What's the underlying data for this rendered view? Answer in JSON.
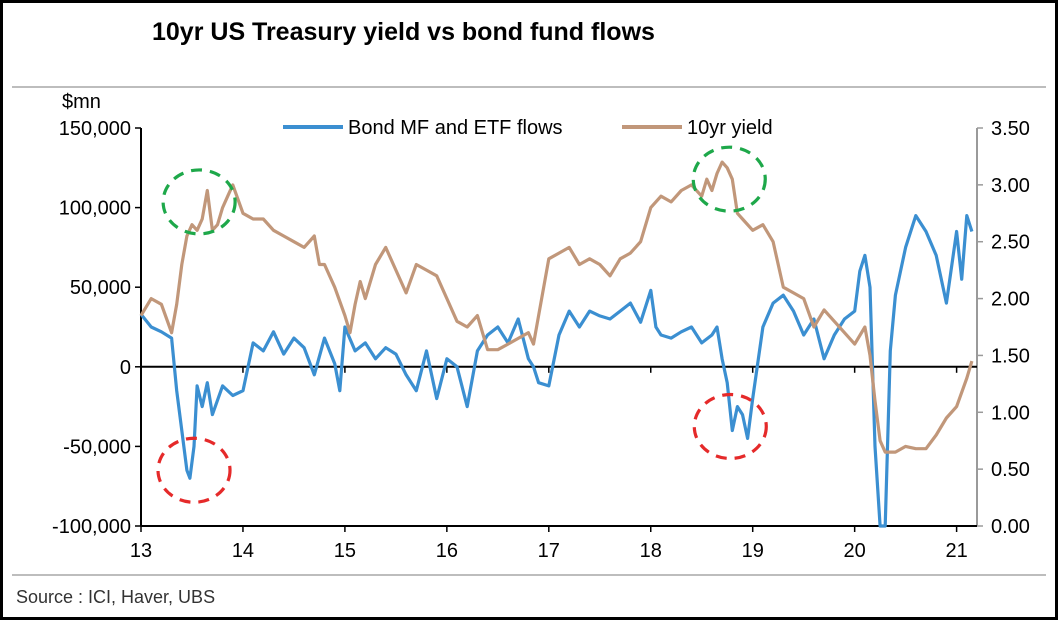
{
  "title": "10yr US Treasury yield vs bond fund flows",
  "source": "Source : ICI, Haver, UBS",
  "chart_data": {
    "type": "line",
    "title": "10yr US Treasury yield vs bond fund flows",
    "left_axis": {
      "unit_label": "$mn",
      "ylim": [
        -100000,
        150000
      ],
      "ticks": [
        150000,
        100000,
        50000,
        0,
        -50000,
        -100000
      ],
      "tick_labels": [
        "150,000",
        "100,000",
        "50,000",
        "0",
        "-50,000",
        "-100,000"
      ]
    },
    "right_axis": {
      "ylim": [
        0,
        3.5
      ],
      "ticks": [
        3.5,
        3.0,
        2.5,
        2.0,
        1.5,
        1.0,
        0.5,
        0.0
      ],
      "tick_labels": [
        "3.50",
        "3.00",
        "2.50",
        "2.00",
        "1.50",
        "1.00",
        "0.50",
        "0.00"
      ]
    },
    "x_axis": {
      "xlim": [
        13,
        21.2
      ],
      "ticks": [
        13,
        14,
        15,
        16,
        17,
        18,
        19,
        20,
        21
      ],
      "tick_labels": [
        "13",
        "14",
        "15",
        "16",
        "17",
        "18",
        "19",
        "20",
        "21"
      ]
    },
    "legend_position": "top-center",
    "series": [
      {
        "name": "Bond MF and ETF flows",
        "axis": "left",
        "color": "#3b8fd1",
        "x": [
          13.0,
          13.1,
          13.2,
          13.3,
          13.35,
          13.4,
          13.45,
          13.48,
          13.52,
          13.55,
          13.6,
          13.65,
          13.7,
          13.8,
          13.9,
          14.0,
          14.1,
          14.2,
          14.3,
          14.4,
          14.5,
          14.6,
          14.7,
          14.8,
          14.9,
          14.95,
          15.0,
          15.1,
          15.2,
          15.3,
          15.4,
          15.5,
          15.6,
          15.7,
          15.8,
          15.9,
          16.0,
          16.1,
          16.2,
          16.3,
          16.4,
          16.5,
          16.6,
          16.7,
          16.8,
          16.85,
          16.9,
          17.0,
          17.1,
          17.2,
          17.3,
          17.4,
          17.5,
          17.6,
          17.7,
          17.8,
          17.9,
          18.0,
          18.05,
          18.1,
          18.2,
          18.3,
          18.4,
          18.5,
          18.6,
          18.65,
          18.7,
          18.75,
          18.8,
          18.85,
          18.9,
          18.95,
          19.0,
          19.1,
          19.2,
          19.3,
          19.4,
          19.5,
          19.6,
          19.7,
          19.8,
          19.9,
          20.0,
          20.05,
          20.1,
          20.15,
          20.2,
          20.25,
          20.3,
          20.35,
          20.4,
          20.5,
          20.6,
          20.7,
          20.8,
          20.9,
          21.0,
          21.05,
          21.1,
          21.15
        ],
        "values": [
          33000,
          25000,
          22000,
          18000,
          -15000,
          -40000,
          -65000,
          -70000,
          -50000,
          -12000,
          -25000,
          -10000,
          -30000,
          -12000,
          -18000,
          -15000,
          15000,
          10000,
          22000,
          8000,
          18000,
          12000,
          -5000,
          18000,
          2000,
          -15000,
          25000,
          10000,
          15000,
          5000,
          12000,
          8000,
          -5000,
          -15000,
          10000,
          -20000,
          5000,
          0,
          -25000,
          10000,
          20000,
          25000,
          15000,
          30000,
          5000,
          0,
          -10000,
          -12000,
          20000,
          35000,
          25000,
          35000,
          32000,
          30000,
          35000,
          40000,
          28000,
          48000,
          25000,
          20000,
          18000,
          22000,
          25000,
          15000,
          20000,
          25000,
          5000,
          -10000,
          -40000,
          -25000,
          -30000,
          -45000,
          -20000,
          25000,
          40000,
          45000,
          35000,
          20000,
          30000,
          5000,
          20000,
          30000,
          35000,
          60000,
          70000,
          50000,
          -50000,
          -100000,
          -100000,
          10000,
          45000,
          75000,
          95000,
          85000,
          70000,
          40000,
          85000,
          55000,
          95000,
          85000
        ]
      },
      {
        "name": "10yr yield",
        "axis": "right",
        "color": "#c1977a",
        "x": [
          13.0,
          13.1,
          13.2,
          13.3,
          13.35,
          13.4,
          13.45,
          13.5,
          13.55,
          13.6,
          13.65,
          13.7,
          13.75,
          13.8,
          13.85,
          13.9,
          14.0,
          14.1,
          14.2,
          14.3,
          14.4,
          14.5,
          14.6,
          14.7,
          14.75,
          14.8,
          14.9,
          15.0,
          15.05,
          15.1,
          15.15,
          15.2,
          15.3,
          15.4,
          15.5,
          15.6,
          15.7,
          15.8,
          15.9,
          16.0,
          16.1,
          16.2,
          16.3,
          16.4,
          16.5,
          16.6,
          16.7,
          16.8,
          16.85,
          16.9,
          17.0,
          17.1,
          17.2,
          17.3,
          17.4,
          17.5,
          17.6,
          17.7,
          17.8,
          17.9,
          18.0,
          18.1,
          18.2,
          18.3,
          18.4,
          18.5,
          18.55,
          18.6,
          18.65,
          18.7,
          18.75,
          18.8,
          18.85,
          18.9,
          19.0,
          19.1,
          19.2,
          19.3,
          19.4,
          19.5,
          19.6,
          19.7,
          19.8,
          19.9,
          20.0,
          20.1,
          20.15,
          20.2,
          20.25,
          20.3,
          20.4,
          20.5,
          20.6,
          20.7,
          20.8,
          20.9,
          21.0,
          21.1,
          21.15
        ],
        "values": [
          1.85,
          2.0,
          1.95,
          1.7,
          1.95,
          2.3,
          2.55,
          2.65,
          2.6,
          2.7,
          2.95,
          2.6,
          2.65,
          2.8,
          2.9,
          3.0,
          2.75,
          2.7,
          2.7,
          2.6,
          2.55,
          2.5,
          2.45,
          2.55,
          2.3,
          2.3,
          2.1,
          1.85,
          1.7,
          1.95,
          2.15,
          2.0,
          2.3,
          2.45,
          2.25,
          2.05,
          2.3,
          2.25,
          2.2,
          2.0,
          1.8,
          1.75,
          1.85,
          1.55,
          1.55,
          1.6,
          1.65,
          1.7,
          1.6,
          1.85,
          2.35,
          2.4,
          2.45,
          2.3,
          2.35,
          2.3,
          2.2,
          2.35,
          2.4,
          2.5,
          2.8,
          2.9,
          2.85,
          2.95,
          3.0,
          2.9,
          3.05,
          2.95,
          3.1,
          3.2,
          3.15,
          3.05,
          2.75,
          2.7,
          2.6,
          2.65,
          2.5,
          2.1,
          2.05,
          2.0,
          1.75,
          1.9,
          1.8,
          1.7,
          1.6,
          1.75,
          1.5,
          1.1,
          0.75,
          0.65,
          0.65,
          0.7,
          0.68,
          0.68,
          0.8,
          0.95,
          1.05,
          1.3,
          1.45
        ]
      }
    ],
    "annotations": [
      {
        "kind": "dashed-circle",
        "color": "#1ea84a",
        "x": 13.57,
        "axis": "right",
        "y": 2.85
      },
      {
        "kind": "dashed-circle",
        "color": "#1ea84a",
        "x": 18.77,
        "axis": "right",
        "y": 3.05
      },
      {
        "kind": "dashed-circle",
        "color": "#e52a2a",
        "x": 13.52,
        "axis": "left",
        "y": -65000
      },
      {
        "kind": "dashed-circle",
        "color": "#e52a2a",
        "x": 18.78,
        "axis": "left",
        "y": -37500
      }
    ]
  }
}
